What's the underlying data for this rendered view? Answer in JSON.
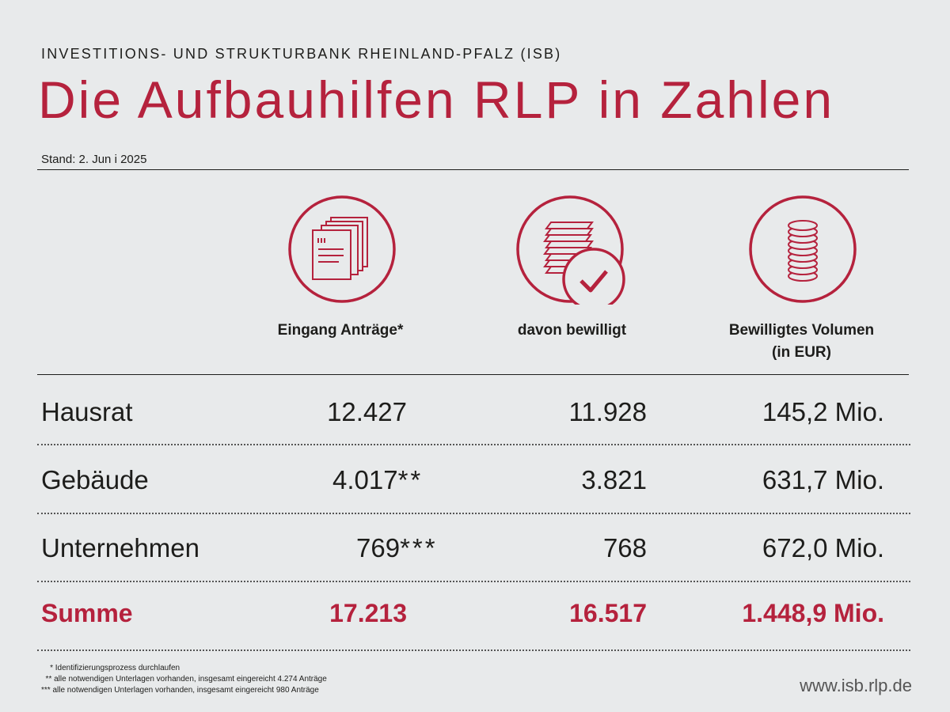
{
  "header": {
    "org": "INVESTITIONS- UND STRUKTURBANK RHEINLAND-PFALZ (ISB)",
    "title": "Die Aufbauhilfen RLP in Zahlen",
    "stand": "Stand: 2. Jun i 2025"
  },
  "columns": [
    {
      "icon": "documents-stack-icon",
      "label": "Eingang Anträge*"
    },
    {
      "icon": "approved-papers-icon",
      "label": "davon bewilligt"
    },
    {
      "icon": "coin-stack-icon",
      "label_line1": "Bewilligtes Volumen",
      "label_line2": "(in EUR)"
    }
  ],
  "rows": [
    {
      "label": "Hausrat",
      "eingang": "12.427",
      "eingang_suffix": "",
      "bewilligt": "11.928",
      "volumen": "145,2 Mio."
    },
    {
      "label": "Gebäude",
      "eingang": "4.017",
      "eingang_suffix": "**",
      "bewilligt": "3.821",
      "volumen": "631,7 Mio."
    },
    {
      "label": "Unternehmen",
      "eingang": "769",
      "eingang_suffix": "***",
      "bewilligt": "768",
      "volumen": "672,0 Mio."
    }
  ],
  "summe": {
    "label": "Summe",
    "eingang": "17.213",
    "bewilligt": "16.517",
    "volumen": "1.448,9 Mio."
  },
  "footnotes": [
    "    * Identifizierungsprozess durchlaufen",
    "  ** alle notwendigen Unterlagen vorhanden, insgesamt eingereicht 4.274 Anträge",
    "*** alle notwendigen Unterlagen vorhanden, insgesamt eingereicht 980 Anträge"
  ],
  "footer": {
    "url": "www.isb.rlp.de"
  },
  "colors": {
    "accent": "#b5223d",
    "background": "#e8eaeb",
    "text": "#1d1d1b"
  }
}
